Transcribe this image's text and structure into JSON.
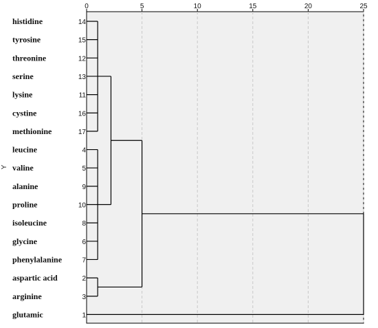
{
  "chart_data": {
    "type": "dendrogram",
    "orientation": "horizontal",
    "ylabel": "Y",
    "x_ticks": [
      0,
      5,
      10,
      15,
      20,
      25
    ],
    "xlim": [
      0,
      25
    ],
    "grid": true,
    "leaves": [
      {
        "label": "histidine",
        "case": 14
      },
      {
        "label": "tyrosine",
        "case": 15
      },
      {
        "label": "threonine",
        "case": 12
      },
      {
        "label": "serine",
        "case": 13
      },
      {
        "label": "lysine",
        "case": 11
      },
      {
        "label": "cystine",
        "case": 16
      },
      {
        "label": "methionine",
        "case": 17
      },
      {
        "label": "leucine",
        "case": 4
      },
      {
        "label": "valine",
        "case": 5
      },
      {
        "label": "alanine",
        "case": 9
      },
      {
        "label": "proline",
        "case": 10
      },
      {
        "label": "isoleucine",
        "case": 8
      },
      {
        "label": "glycine",
        "case": 6
      },
      {
        "label": "phenylalanine",
        "case": 7
      },
      {
        "label": "aspartic acid",
        "case": 2
      },
      {
        "label": "arginine",
        "case": 3
      },
      {
        "label": "glutamic",
        "case": 1
      }
    ],
    "merges": [
      {
        "children": [
          0,
          1,
          2,
          3,
          4,
          5,
          6
        ],
        "height": 1.0
      },
      {
        "children": [
          7,
          8,
          9,
          10,
          11,
          12,
          13
        ],
        "height": 1.0
      },
      {
        "children": [
          14,
          15
        ],
        "height": 1.0
      },
      {
        "children": [
          17,
          18
        ],
        "height": 2.2
      },
      {
        "children": [
          20,
          19
        ],
        "height": 5.0
      },
      {
        "children": [
          21,
          16
        ],
        "height": 25.0
      }
    ]
  }
}
